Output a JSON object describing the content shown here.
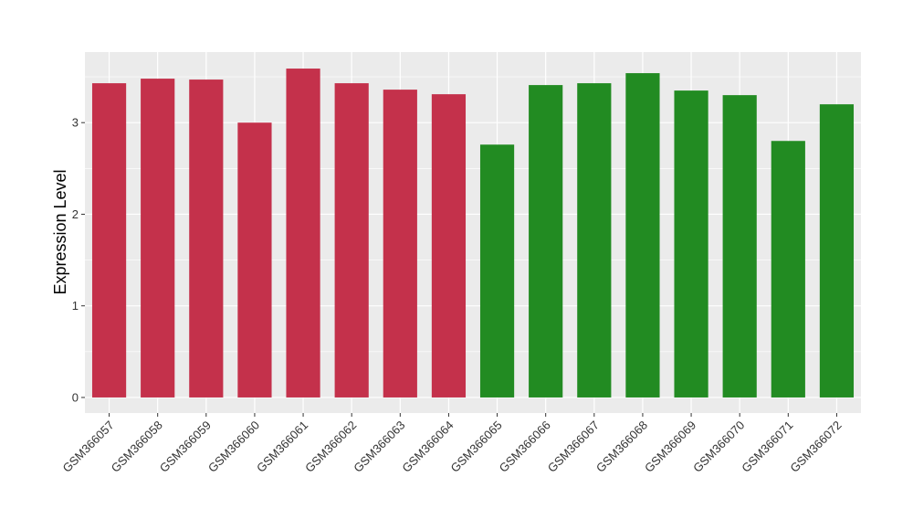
{
  "chart_data": {
    "type": "bar",
    "categories": [
      "GSM366057",
      "GSM366058",
      "GSM366059",
      "GSM366060",
      "GSM366061",
      "GSM366062",
      "GSM366063",
      "GSM366064",
      "GSM366065",
      "GSM366066",
      "GSM366067",
      "GSM366068",
      "GSM366069",
      "GSM366070",
      "GSM366071",
      "GSM366072"
    ],
    "values": [
      3.43,
      3.48,
      3.47,
      3.0,
      3.59,
      3.43,
      3.36,
      3.31,
      2.76,
      3.41,
      3.43,
      3.54,
      3.35,
      3.3,
      2.8,
      3.2
    ],
    "bar_colors": [
      "#c4314b",
      "#c4314b",
      "#c4314b",
      "#c4314b",
      "#c4314b",
      "#c4314b",
      "#c4314b",
      "#c4314b",
      "#228b22",
      "#228b22",
      "#228b22",
      "#228b22",
      "#228b22",
      "#228b22",
      "#228b22",
      "#228b22"
    ],
    "title": "",
    "xlabel": "",
    "ylabel": "Expression Level",
    "ylim": [
      -0.17,
      3.77
    ],
    "yticks": [
      0,
      1,
      2,
      3
    ],
    "ytick_labels": [
      "0",
      "1",
      "2",
      "3"
    ],
    "grid": true,
    "legend": "none",
    "panel_background": "#ebebeb",
    "grid_color": "#ffffff"
  }
}
